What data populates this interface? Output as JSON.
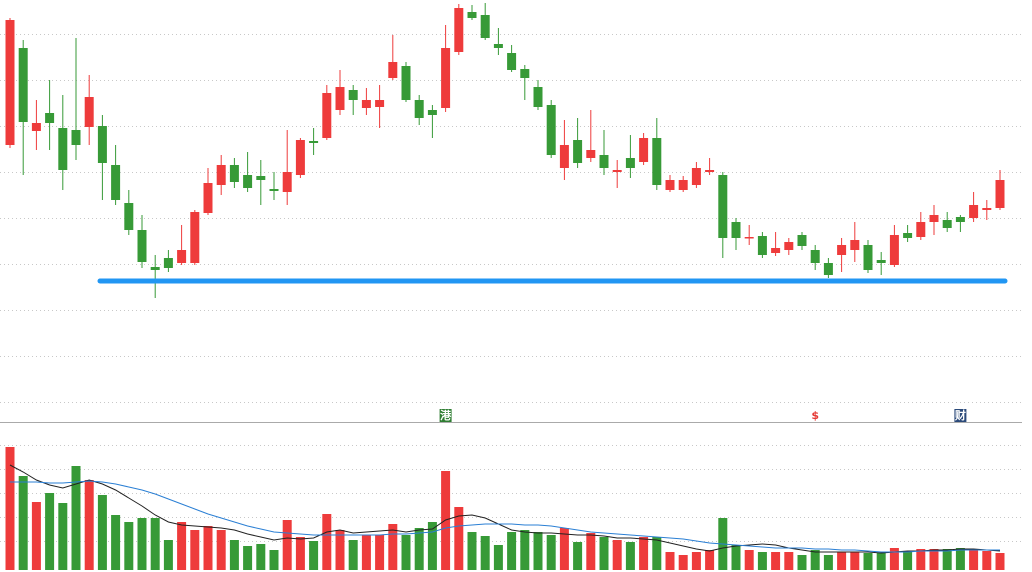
{
  "chart_data": {
    "type": "candlestick",
    "up_color": "#ee3b3b",
    "down_color": "#379a37",
    "grid": true,
    "ylim": [
      0,
      420
    ],
    "yticks": [
      18,
      64,
      110,
      156,
      202,
      248,
      294,
      340,
      386
    ],
    "open": [
      275,
      372,
      289,
      307,
      292,
      290,
      293,
      294,
      255,
      217,
      190,
      153,
      162,
      157,
      157,
      207,
      235,
      255,
      245,
      244,
      231,
      228,
      245,
      279,
      282,
      310,
      330,
      312,
      313,
      342,
      354,
      320,
      310,
      312,
      368,
      408,
      405,
      376,
      367,
      351,
      333,
      315,
      252,
      280,
      262,
      265,
      248,
      262,
      258,
      282,
      230,
      230,
      235,
      248,
      245,
      198,
      182,
      184,
      167,
      170,
      185,
      170,
      157,
      165,
      170,
      175,
      160,
      155,
      187,
      183,
      198,
      200,
      203,
      202,
      210,
      212
    ],
    "high": [
      402,
      380,
      320,
      340,
      325,
      382,
      345,
      305,
      275,
      230,
      205,
      165,
      170,
      195,
      210,
      252,
      265,
      262,
      268,
      260,
      248,
      290,
      282,
      292,
      335,
      350,
      335,
      332,
      335,
      385,
      358,
      325,
      315,
      395,
      416,
      415,
      417,
      392,
      375,
      355,
      340,
      320,
      300,
      302,
      310,
      290,
      260,
      285,
      287,
      302,
      245,
      244,
      258,
      262,
      248,
      202,
      195,
      188,
      188,
      182,
      188,
      175,
      162,
      182,
      198,
      180,
      168,
      195,
      195,
      208,
      215,
      208,
      205,
      228,
      220,
      250
    ],
    "low": [
      272,
      245,
      270,
      270,
      230,
      260,
      275,
      220,
      215,
      185,
      152,
      122,
      148,
      155,
      155,
      205,
      225,
      232,
      228,
      215,
      220,
      215,
      242,
      265,
      280,
      305,
      305,
      305,
      292,
      340,
      318,
      295,
      282,
      308,
      365,
      400,
      380,
      365,
      348,
      320,
      310,
      262,
      240,
      252,
      258,
      245,
      232,
      242,
      255,
      230,
      228,
      228,
      232,
      245,
      162,
      170,
      175,
      162,
      164,
      165,
      170,
      150,
      142,
      148,
      158,
      147,
      145,
      153,
      178,
      180,
      185,
      188,
      188,
      198,
      200,
      210
    ],
    "close": [
      400,
      298,
      297,
      297,
      250,
      275,
      323,
      257,
      220,
      190,
      158,
      150,
      152,
      170,
      208,
      237,
      255,
      238,
      232,
      240,
      229,
      248,
      280,
      277,
      327,
      333,
      320,
      320,
      320,
      358,
      320,
      302,
      305,
      372,
      412,
      402,
      382,
      372,
      350,
      342,
      313,
      265,
      275,
      257,
      270,
      252,
      250,
      252,
      282,
      235,
      240,
      240,
      252,
      250,
      182,
      182,
      183,
      165,
      172,
      178,
      174,
      157,
      145,
      175,
      180,
      150,
      157,
      185,
      182,
      198,
      205,
      192,
      198,
      215,
      212,
      240
    ],
    "support_line": {
      "value": 139,
      "color": "#2196f3"
    },
    "events": [
      null,
      null,
      null,
      null,
      null,
      null,
      null,
      null,
      null,
      null,
      null,
      null,
      null,
      null,
      null,
      null,
      null,
      null,
      null,
      null,
      null,
      null,
      null,
      null,
      null,
      null,
      null,
      null,
      null,
      null,
      null,
      null,
      null,
      {
        "label": "港",
        "color": "#ffffff",
        "background": "#2e7d32"
      },
      null,
      null,
      null,
      null,
      null,
      null,
      null,
      null,
      null,
      null,
      null,
      null,
      null,
      null,
      null,
      null,
      null,
      null,
      null,
      null,
      null,
      null,
      null,
      null,
      null,
      null,
      null,
      {
        "label": "$",
        "color": "#e53935",
        "background": "none"
      },
      null,
      null,
      null,
      null,
      null,
      null,
      null,
      null,
      null,
      null,
      {
        "label": "财",
        "color": "#ffffff",
        "background": "#2b4a7a"
      },
      null,
      null,
      null
    ],
    "volume": {
      "ylim": [
        0,
        130
      ],
      "yticks": [
        29,
        53,
        77,
        101,
        125
      ],
      "values": [
        123,
        94,
        68,
        77,
        67,
        104,
        90,
        75,
        55,
        48,
        52,
        52,
        30,
        48,
        40,
        44,
        40,
        30,
        24,
        26,
        20,
        50,
        33,
        29,
        56,
        40,
        30,
        35,
        35,
        46,
        35,
        42,
        48,
        99,
        63,
        38,
        34,
        25,
        38,
        40,
        38,
        35,
        42,
        28,
        37,
        33,
        30,
        28,
        33,
        33,
        18,
        15,
        18,
        20,
        52,
        25,
        20,
        18,
        18,
        18,
        15,
        20,
        15,
        18,
        18,
        17,
        17,
        22,
        19,
        21,
        21,
        21,
        22,
        21,
        19,
        17
      ],
      "averages": [
        {
          "color": "#222222",
          "values": [
            105,
            98,
            90,
            85,
            82,
            86,
            90,
            86,
            80,
            72,
            64,
            55,
            48,
            45,
            44,
            43,
            42,
            40,
            36,
            33,
            30,
            32,
            31,
            32,
            38,
            40,
            37,
            38,
            39,
            40,
            38,
            40,
            41,
            50,
            54,
            55,
            52,
            46,
            40,
            38,
            37,
            37,
            36,
            35,
            35,
            34,
            32,
            32,
            31,
            30,
            27,
            24,
            21,
            19,
            22,
            24,
            25,
            26,
            25,
            22,
            20,
            18,
            18,
            18,
            18,
            18,
            17,
            18,
            19,
            19,
            20,
            20,
            21,
            21,
            20,
            19
          ]
        },
        {
          "color": "#2a7fd4",
          "values": [
            88,
            88,
            88,
            87,
            87,
            88,
            89,
            88,
            86,
            83,
            80,
            76,
            71,
            66,
            61,
            56,
            52,
            48,
            44,
            41,
            38,
            37,
            36,
            35,
            35,
            35,
            35,
            35,
            35,
            36,
            36,
            37,
            38,
            42,
            44,
            45,
            46,
            46,
            46,
            45,
            45,
            44,
            42,
            40,
            38,
            37,
            36,
            35,
            34,
            33,
            32,
            31,
            29,
            27,
            26,
            25,
            24,
            23,
            22,
            22,
            22,
            21,
            21,
            20,
            20,
            19,
            18,
            18,
            18,
            19,
            19,
            19,
            20,
            20,
            20,
            20
          ]
        }
      ]
    }
  }
}
